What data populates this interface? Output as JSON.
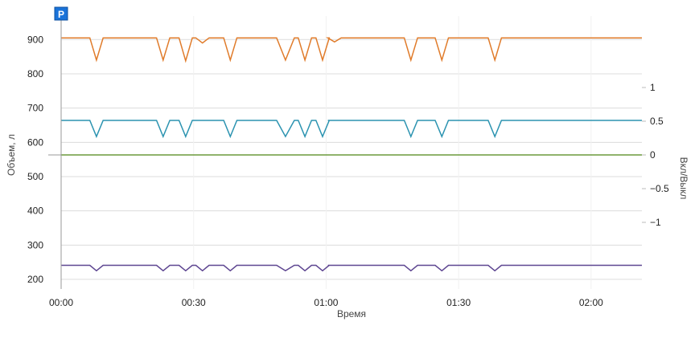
{
  "chart_data": {
    "type": "line",
    "title": "",
    "xlabel": "Время",
    "ylabel": "Объем, л",
    "y2label": "Вкл/Выкл",
    "marker_label": "P",
    "x_unit": "minutes",
    "xlim": [
      0,
      131.5
    ],
    "ylim": [
      178,
      950
    ],
    "y2lim": [
      -1,
      1
    ],
    "x_ticks": [
      {
        "v": 0,
        "label": "00:00"
      },
      {
        "v": 30,
        "label": "00:30"
      },
      {
        "v": 60,
        "label": "01:00"
      },
      {
        "v": 90,
        "label": "01:30"
      },
      {
        "v": 120,
        "label": "02:00"
      }
    ],
    "y_ticks": [
      {
        "v": 200,
        "label": "200"
      },
      {
        "v": 300,
        "label": "300"
      },
      {
        "v": 400,
        "label": "400"
      },
      {
        "v": 500,
        "label": "500"
      },
      {
        "v": 600,
        "label": "600"
      },
      {
        "v": 700,
        "label": "700"
      },
      {
        "v": 800,
        "label": "800"
      },
      {
        "v": 900,
        "label": "900"
      }
    ],
    "y2_ticks": [
      {
        "v": -1,
        "label": "−1"
      },
      {
        "v": -0.5,
        "label": "−0.5"
      },
      {
        "v": 0,
        "label": "0"
      },
      {
        "v": 0.5,
        "label": "0.5"
      },
      {
        "v": 1,
        "label": "1"
      }
    ],
    "grid": true,
    "dips": [
      [
        8,
        3
      ],
      [
        23.1,
        3
      ],
      [
        28.2,
        3
      ],
      [
        32,
        3
      ],
      [
        38.3,
        3
      ],
      [
        50.8,
        4
      ],
      [
        55.2,
        3
      ],
      [
        59.2,
        3
      ],
      [
        61.9,
        3
      ],
      [
        79.2,
        3
      ],
      [
        86.2,
        3
      ],
      [
        98.2,
        3
      ]
    ],
    "series": [
      {
        "name": "series-orange",
        "axis": "left",
        "color": "#e07b2a",
        "base": 905,
        "dip_values": [
          840,
          840,
          838,
          890,
          840,
          840,
          840,
          840,
          893,
          840,
          840,
          840
        ]
      },
      {
        "name": "series-teal",
        "axis": "left",
        "color": "#2b93b0",
        "base": 664,
        "dip_values": [
          617,
          617,
          617,
          664,
          617,
          617,
          617,
          617,
          664,
          617,
          617,
          617
        ]
      },
      {
        "name": "series-purple",
        "axis": "left",
        "color": "#5e4691",
        "base": 241,
        "dip_values": [
          225,
          225,
          225,
          225,
          225,
          225,
          225,
          225,
          241,
          225,
          225,
          225
        ]
      },
      {
        "name": "series-green",
        "axis": "right",
        "color": "#6b9a3c",
        "base": 0,
        "dip_values": []
      }
    ]
  }
}
